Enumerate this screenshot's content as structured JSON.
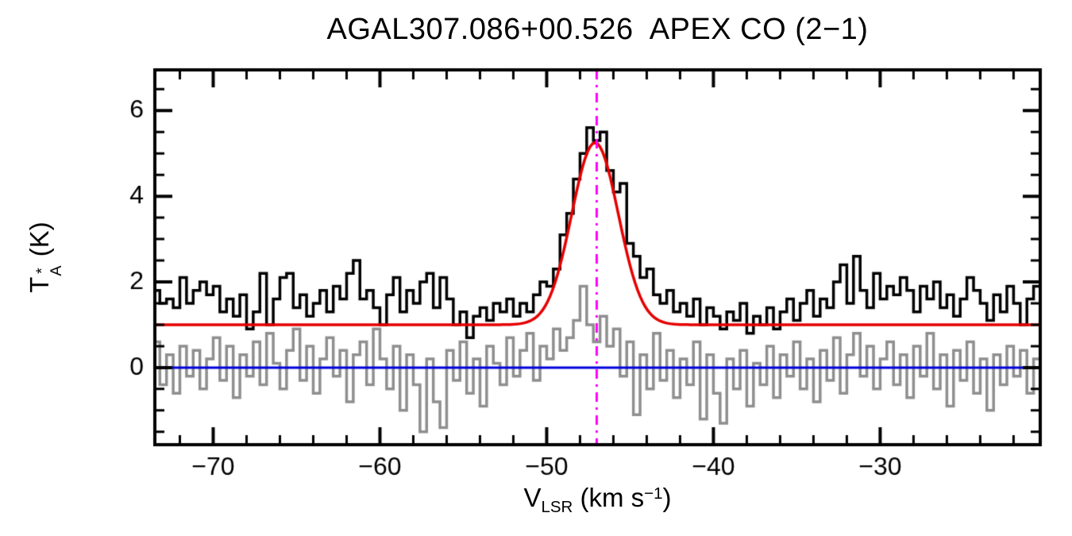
{
  "chart_data": {
    "type": "line",
    "title": "AGAL307.086+00.526  APEX CO (2−1)",
    "ylabel_parts": {
      "symbol": "T",
      "sup": "*",
      "sub": "A",
      "unit": " (K)"
    },
    "xlabel_parts": {
      "symbol": "V",
      "sub": "LSR",
      "pre_unit": " (km s",
      "exponent": "−1",
      "post_unit": ")"
    },
    "xlim": [
      -73.5,
      -20.4
    ],
    "ylim": [
      -1.8,
      6.95
    ],
    "x_ticks": {
      "values": [
        -70,
        -60,
        -50,
        -40,
        -30
      ],
      "labels": [
        "−70",
        "−60",
        "−50",
        "−40",
        "−30"
      ]
    },
    "y_ticks": {
      "values": [
        0,
        2,
        4,
        6
      ],
      "labels": [
        "0",
        "2",
        "4",
        "6"
      ]
    },
    "x_minor_step": 2,
    "y_minor_step": 0.5,
    "x_start": -73.4,
    "dx": 0.4,
    "series": [
      {
        "name": "co21-spectrum-offset",
        "color": "#000000",
        "offset": 1.0,
        "values": [
          1.8,
          1.5,
          1.6,
          1.4,
          2.1,
          1.5,
          1.8,
          2.0,
          1.7,
          1.9,
          1.3,
          1.6,
          1.2,
          1.7,
          0.9,
          1.3,
          2.2,
          1.0,
          1.6,
          2.1,
          2.2,
          1.4,
          1.7,
          1.2,
          1.5,
          1.8,
          1.3,
          1.9,
          1.6,
          2.2,
          2.5,
          1.6,
          1.8,
          1.4,
          1.0,
          1.7,
          2.1,
          1.3,
          1.8,
          1.5,
          2.0,
          2.2,
          1.4,
          2.1,
          1.6,
          1.0,
          1.3,
          0.7,
          1.2,
          1.4,
          1.1,
          1.5,
          1.3,
          1.6,
          1.2,
          1.5,
          1.3,
          1.7,
          2.0,
          1.9,
          2.3,
          3.1,
          3.6,
          4.4,
          5.0,
          5.6,
          5.3,
          5.5,
          4.6,
          4.1,
          4.3,
          2.9,
          2.6,
          2.1,
          2.3,
          1.7,
          1.5,
          1.8,
          1.3,
          1.5,
          1.2,
          1.6,
          1.0,
          1.4,
          1.2,
          0.9,
          1.3,
          1.1,
          1.5,
          0.8,
          1.2,
          1.0,
          1.4,
          0.9,
          1.3,
          1.6,
          1.1,
          1.5,
          1.8,
          1.2,
          1.6,
          1.4,
          2.0,
          2.4,
          1.5,
          2.6,
          1.8,
          1.4,
          2.2,
          1.6,
          1.9,
          1.7,
          2.1,
          1.8,
          1.3,
          1.9,
          1.6,
          2.0,
          1.4,
          1.7,
          1.2,
          1.6,
          2.1,
          1.8,
          1.5,
          1.1,
          1.7,
          1.3,
          1.9,
          1.5,
          1.0,
          1.6,
          1.9
        ]
      },
      {
        "name": "residual-spectrum",
        "color": "#8f8f8f",
        "offset": 0.0,
        "values": [
          0.6,
          -0.4,
          0.3,
          -0.6,
          0.5,
          -0.2,
          0.4,
          -0.5,
          0.2,
          0.7,
          -0.3,
          0.5,
          -0.7,
          0.3,
          -0.2,
          0.6,
          -0.4,
          0.8,
          0.1,
          -0.5,
          0.4,
          0.9,
          -0.3,
          0.5,
          -0.6,
          0.2,
          0.7,
          -0.2,
          0.4,
          -0.8,
          0.3,
          0.6,
          -0.4,
          0.9,
          0.2,
          -0.5,
          0.5,
          -1.0,
          0.3,
          -0.4,
          -1.5,
          0.2,
          -0.8,
          -1.4,
          0.4,
          -0.3,
          0.6,
          -0.6,
          0.2,
          -0.9,
          0.5,
          0.1,
          -0.4,
          0.7,
          -0.2,
          0.4,
          0.8,
          -0.3,
          0.5,
          0.2,
          0.9,
          0.4,
          0.7,
          1.1,
          1.9,
          1.0,
          0.6,
          1.2,
          0.5,
          0.9,
          -0.2,
          0.6,
          -1.1,
          0.3,
          -0.5,
          0.8,
          -0.3,
          0.4,
          -0.7,
          0.2,
          -0.4,
          0.6,
          -1.2,
          0.3,
          -0.6,
          -1.3,
          0.2,
          -0.5,
          0.4,
          -0.9,
          0.1,
          -0.4,
          0.5,
          -0.7,
          0.3,
          -0.2,
          0.6,
          -0.5,
          0.2,
          -0.8,
          0.4,
          -0.3,
          0.7,
          -0.6,
          0.3,
          0.8,
          -0.2,
          0.5,
          -0.5,
          0.2,
          0.6,
          -0.4,
          0.3,
          -0.7,
          0.5,
          -0.2,
          0.8,
          -0.5,
          0.3,
          -0.9,
          0.4,
          -0.3,
          0.6,
          -0.6,
          0.2,
          -1.0,
          0.3,
          -0.4,
          0.5,
          -0.2,
          0.4,
          -0.6,
          0.2
        ]
      }
    ],
    "gaussian_fit": {
      "name": "gaussian-fit",
      "baseline": 1.0,
      "amplitude": 4.25,
      "center": -47.1,
      "fwhm": 3.3,
      "color": "#e60000"
    },
    "zero_line": {
      "y": 0.0,
      "color": "#0000dd"
    },
    "vline": {
      "x": -47.0,
      "color": "#ff00ff",
      "style": "dash-dot"
    }
  }
}
